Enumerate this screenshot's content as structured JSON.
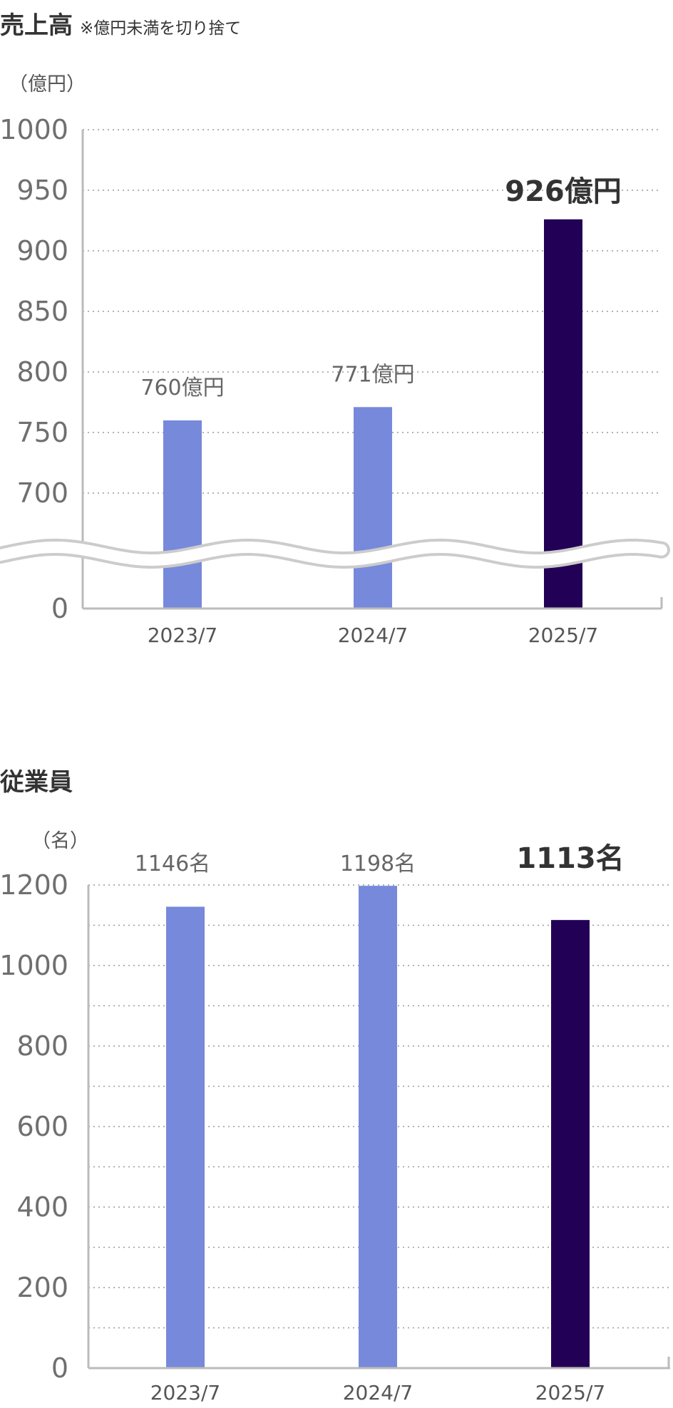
{
  "colors": {
    "bar": "#7789db",
    "bar_highlight": "#220055",
    "axis": "#bbbbbb",
    "grid": "#999999"
  },
  "chart_data": [
    {
      "type": "bar",
      "title": "売上高",
      "subtitle": "※億円未満を切り捨て",
      "ylabel": "（億円）",
      "categories": [
        "2023/7",
        "2024/7",
        "2025/7"
      ],
      "values": [
        760,
        771,
        926
      ],
      "data_labels": [
        "760億円",
        "771億円",
        "926億円"
      ],
      "highlight_index": 2,
      "ylim": [
        0,
        1000
      ],
      "axis_break": [
        0,
        650
      ],
      "yticks": [
        0,
        700,
        750,
        800,
        850,
        900,
        950,
        1000
      ],
      "grid": true,
      "legend": "none"
    },
    {
      "type": "bar",
      "title": "従業員",
      "ylabel": "（名）",
      "categories": [
        "2023/7",
        "2024/7",
        "2025/7"
      ],
      "values": [
        1146,
        1198,
        1113
      ],
      "data_labels": [
        "1146名",
        "1198名",
        "1113名"
      ],
      "highlight_index": 2,
      "ylim": [
        0,
        1200
      ],
      "yticks": [
        0,
        200,
        400,
        600,
        800,
        1000,
        1200
      ],
      "grid": true,
      "legend": "none"
    }
  ]
}
